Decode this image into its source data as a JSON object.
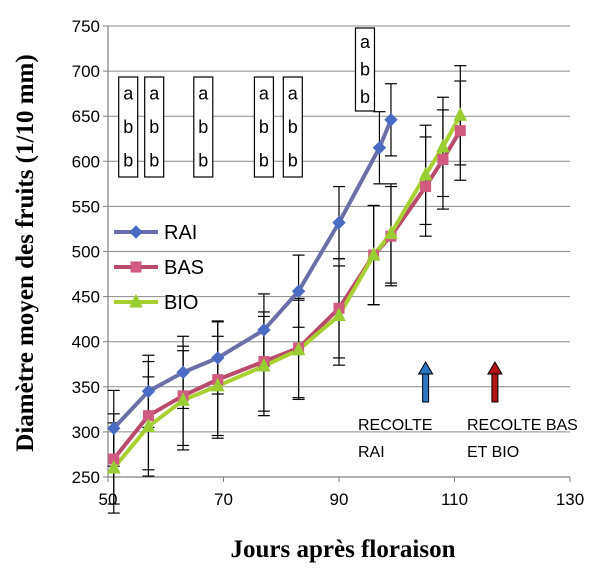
{
  "chart_data": {
    "type": "line",
    "title": "",
    "xlabel": "Jours après floraison",
    "ylabel": "Diamètre moyen des fruits (1/10 mm)",
    "xlim": [
      50,
      130
    ],
    "ylim": [
      250,
      750
    ],
    "xticks": [
      "50",
      "70",
      "90",
      "110",
      "130"
    ],
    "yticks": [
      "250",
      "300",
      "350",
      "400",
      "450",
      "500",
      "550",
      "600",
      "650",
      "700",
      "750"
    ],
    "grid": "horizontal",
    "legend_position": "left",
    "series": [
      {
        "name": "RAI",
        "color": "#6a6fa8",
        "marker": "diamond",
        "x": [
          51,
          57,
          63,
          69,
          77,
          83,
          90,
          97,
          99
        ],
        "y": [
          304,
          345,
          366,
          382,
          413,
          456,
          532,
          615,
          646
        ],
        "err": [
          42,
          40,
          40,
          40,
          40,
          40,
          40,
          40,
          40
        ]
      },
      {
        "name": "BAS",
        "color": "#b84a6a",
        "marker": "square",
        "x": [
          51,
          57,
          63,
          69,
          77,
          83,
          90,
          96,
          99,
          105,
          108,
          111
        ],
        "y": [
          270,
          318,
          340,
          358,
          378,
          393,
          437,
          496,
          517,
          572,
          602,
          634
        ],
        "err": [
          50,
          60,
          55,
          65,
          55,
          55,
          55,
          55,
          55,
          55,
          55,
          55
        ]
      },
      {
        "name": "BIO",
        "color": "#a8d030",
        "marker": "triangle",
        "x": [
          51,
          57,
          63,
          69,
          77,
          83,
          90,
          96,
          99,
          105,
          108,
          111
        ],
        "y": [
          260,
          306,
          335,
          351,
          373,
          391,
          429,
          496,
          520,
          585,
          616,
          651
        ],
        "err": [
          50,
          55,
          55,
          55,
          55,
          55,
          55,
          55,
          55,
          55,
          55,
          55
        ]
      }
    ],
    "significance_boxes": [
      {
        "x": 53.5,
        "letters": [
          "a",
          "b",
          "b"
        ]
      },
      {
        "x": 58,
        "letters": [
          "a",
          "b",
          "b"
        ]
      },
      {
        "x": 66.5,
        "letters": [
          "a",
          "b",
          "b"
        ]
      },
      {
        "x": 77,
        "letters": [
          "a",
          "b",
          "b"
        ]
      },
      {
        "x": 82,
        "letters": [
          "a",
          "b",
          "b"
        ]
      },
      {
        "x": 94.5,
        "letters": [
          "a",
          "b",
          "b"
        ]
      }
    ],
    "annotations": [
      {
        "line1": "RECOLTE",
        "line2": "RAI",
        "arrow_x": 105,
        "arrow_color": "#2b78c2"
      },
      {
        "line1": "RECOLTE BAS",
        "line2": "ET BIO",
        "arrow_x": 117,
        "arrow_color": "#b0131a"
      }
    ]
  }
}
